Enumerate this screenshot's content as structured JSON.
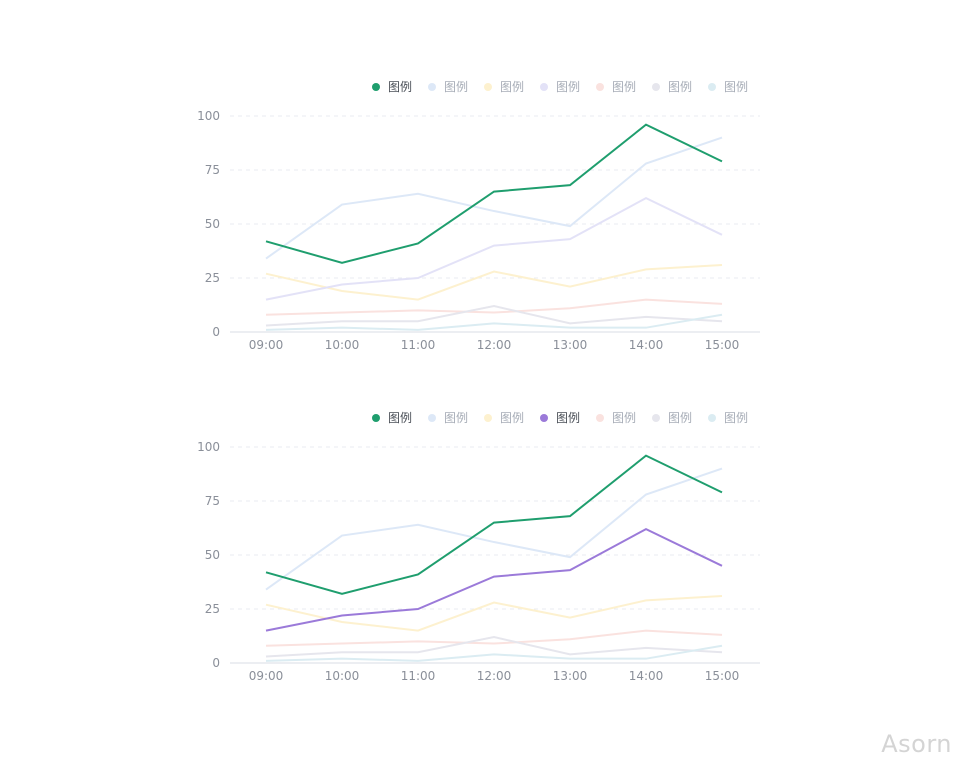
{
  "watermark": "Asorn",
  "colors": {
    "axis": "#d8dde6",
    "grid": "#e8ebf0",
    "tick_text": "#8a8f99",
    "legend_active_text": "#4a4f57",
    "legend_inactive_text": "#a7adb7"
  },
  "chart_data": [
    {
      "type": "line",
      "categories": [
        "09:00",
        "10:00",
        "11:00",
        "12:00",
        "13:00",
        "14:00",
        "15:00"
      ],
      "ylim": [
        0,
        100
      ],
      "yticks": [
        0,
        25,
        50,
        75,
        100
      ],
      "grid": true,
      "legend_position": "top-right",
      "series": [
        {
          "name": "图例",
          "color": "#1f9e6e",
          "active": true,
          "values": [
            42,
            32,
            41,
            65,
            68,
            96,
            79
          ]
        },
        {
          "name": "图例",
          "color": "#dde8f7",
          "active": false,
          "values": [
            34,
            59,
            64,
            56,
            49,
            78,
            90
          ]
        },
        {
          "name": "图例",
          "color": "#fdf1cf",
          "active": false,
          "values": [
            27,
            19,
            15,
            28,
            21,
            29,
            31
          ]
        },
        {
          "name": "图例",
          "color": "#e3e2f7",
          "active": false,
          "values": [
            15,
            22,
            25,
            40,
            43,
            62,
            45
          ]
        },
        {
          "name": "图例",
          "color": "#fae2df",
          "active": false,
          "values": [
            8,
            9,
            10,
            9,
            11,
            15,
            13
          ]
        },
        {
          "name": "图例",
          "color": "#e6e6ed",
          "active": false,
          "values": [
            3,
            5,
            5,
            12,
            4,
            7,
            5
          ]
        },
        {
          "name": "图例",
          "color": "#dbecf2",
          "active": false,
          "values": [
            1,
            2,
            1,
            4,
            2,
            2,
            8
          ]
        }
      ]
    },
    {
      "type": "line",
      "categories": [
        "09:00",
        "10:00",
        "11:00",
        "12:00",
        "13:00",
        "14:00",
        "15:00"
      ],
      "ylim": [
        0,
        100
      ],
      "yticks": [
        0,
        25,
        50,
        75,
        100
      ],
      "grid": true,
      "legend_position": "top-right",
      "series": [
        {
          "name": "图例",
          "color": "#1f9e6e",
          "active": true,
          "values": [
            42,
            32,
            41,
            65,
            68,
            96,
            79
          ]
        },
        {
          "name": "图例",
          "color": "#dde8f7",
          "active": false,
          "values": [
            34,
            59,
            64,
            56,
            49,
            78,
            90
          ]
        },
        {
          "name": "图例",
          "color": "#fdf1cf",
          "active": false,
          "values": [
            27,
            19,
            15,
            28,
            21,
            29,
            31
          ]
        },
        {
          "name": "图例",
          "color": "#9b7ad9",
          "active": true,
          "values": [
            15,
            22,
            25,
            40,
            43,
            62,
            45
          ]
        },
        {
          "name": "图例",
          "color": "#fae2df",
          "active": false,
          "values": [
            8,
            9,
            10,
            9,
            11,
            15,
            13
          ]
        },
        {
          "name": "图例",
          "color": "#e6e6ed",
          "active": false,
          "values": [
            3,
            5,
            5,
            12,
            4,
            7,
            5
          ]
        },
        {
          "name": "图例",
          "color": "#dbecf2",
          "active": false,
          "values": [
            1,
            2,
            1,
            4,
            2,
            2,
            8
          ]
        }
      ]
    }
  ]
}
